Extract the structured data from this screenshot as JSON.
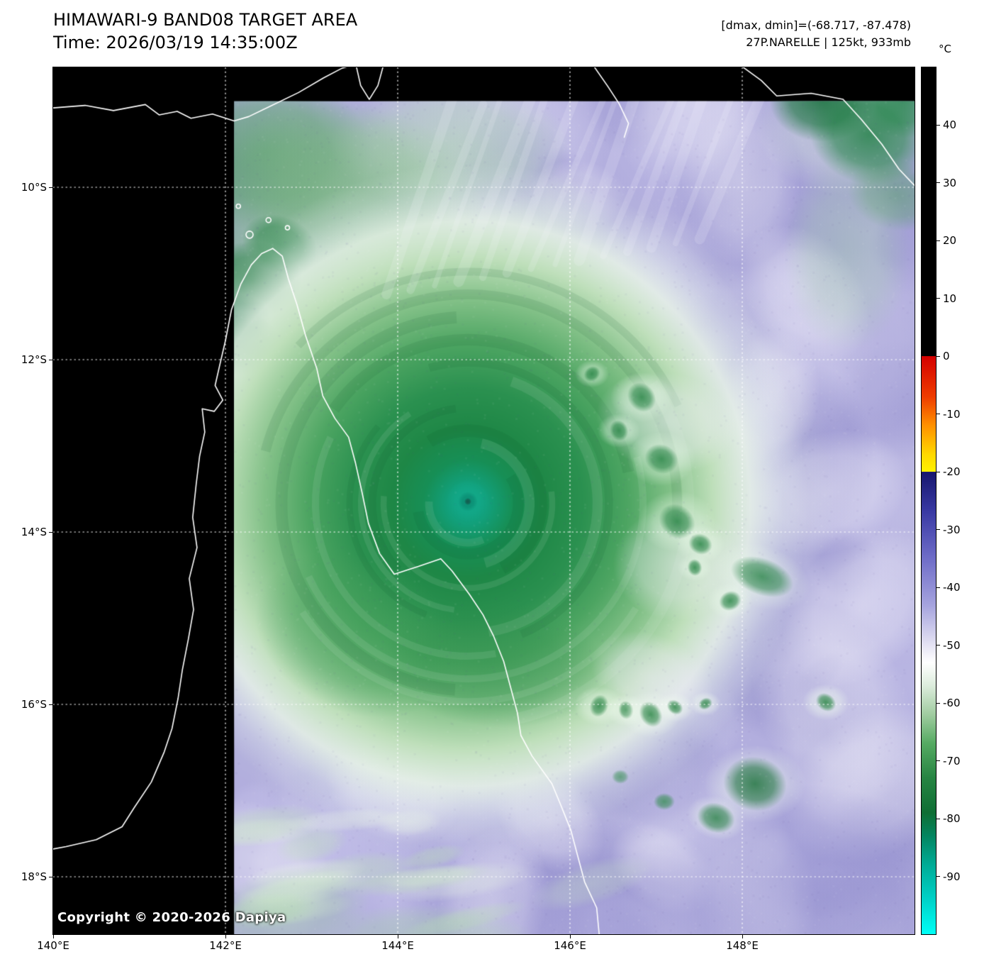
{
  "header": {
    "title": "HIMAWARI-9 BAND08 TARGET AREA",
    "time": "Time: 2026/03/19 14:35:00Z",
    "dmax_dmin": "[dmax, dmin]=(-68.717, -87.478)",
    "storm_info": "27P.NARELLE | 125kt, 933mb"
  },
  "map": {
    "copyright": "Copyright © 2020-2026 Dapiya",
    "extent": {
      "lon_min": 140.0,
      "lon_max": 150.0,
      "lat_min": 8.61,
      "lat_max": 18.67
    },
    "data_window": {
      "lon_min": 142.1,
      "lat_min": 9.0
    },
    "x_ticks": [
      {
        "label": "140°E",
        "lon": 140
      },
      {
        "label": "142°E",
        "lon": 142
      },
      {
        "label": "144°E",
        "lon": 144
      },
      {
        "label": "146°E",
        "lon": 146
      },
      {
        "label": "148°E",
        "lon": 148
      }
    ],
    "y_ticks": [
      {
        "label": "10°S",
        "lat": 10
      },
      {
        "label": "12°S",
        "lat": 12
      },
      {
        "label": "14°S",
        "lat": 14
      },
      {
        "label": "16°S",
        "lat": 16
      },
      {
        "label": "18°S",
        "lat": 18
      }
    ],
    "grid_lons": [
      142,
      144,
      146,
      148
    ],
    "grid_lats": [
      10,
      12,
      14,
      16,
      18
    ]
  },
  "colorbar": {
    "unit": "°C",
    "top_value": 50,
    "bottom_value": -100,
    "tick_values": [
      40,
      30,
      20,
      10,
      0,
      -10,
      -20,
      -30,
      -40,
      -50,
      -60,
      -70,
      -80,
      -90
    ],
    "stops": [
      {
        "t": 50,
        "c": "#000000"
      },
      {
        "t": 0.05,
        "c": "#000000"
      },
      {
        "t": 0,
        "c": "#d40000"
      },
      {
        "t": -7,
        "c": "#ee3c00"
      },
      {
        "t": -12,
        "c": "#ff9100"
      },
      {
        "t": -17,
        "c": "#ffd800"
      },
      {
        "t": -19.95,
        "c": "#fff200"
      },
      {
        "t": -20,
        "c": "#16166e"
      },
      {
        "t": -27,
        "c": "#3a3aa4"
      },
      {
        "t": -35,
        "c": "#6f6dc8"
      },
      {
        "t": -43,
        "c": "#a5a3de"
      },
      {
        "t": -49,
        "c": "#dcdaf0"
      },
      {
        "t": -53,
        "c": "#ffffff"
      },
      {
        "t": -57,
        "c": "#dcecdc"
      },
      {
        "t": -62,
        "c": "#a0cca0"
      },
      {
        "t": -67,
        "c": "#55aa62"
      },
      {
        "t": -73,
        "c": "#268442"
      },
      {
        "t": -79,
        "c": "#0f6e34"
      },
      {
        "t": -83,
        "c": "#038560"
      },
      {
        "t": -88,
        "c": "#00ab96"
      },
      {
        "t": -94,
        "c": "#00d2c8"
      },
      {
        "t": -100,
        "c": "#00fff6"
      }
    ]
  },
  "colors": {
    "background": "#ffffff",
    "no_data": "#000000",
    "coastline": "#ffffff",
    "grid": "#ffffff",
    "text": "#000000"
  }
}
